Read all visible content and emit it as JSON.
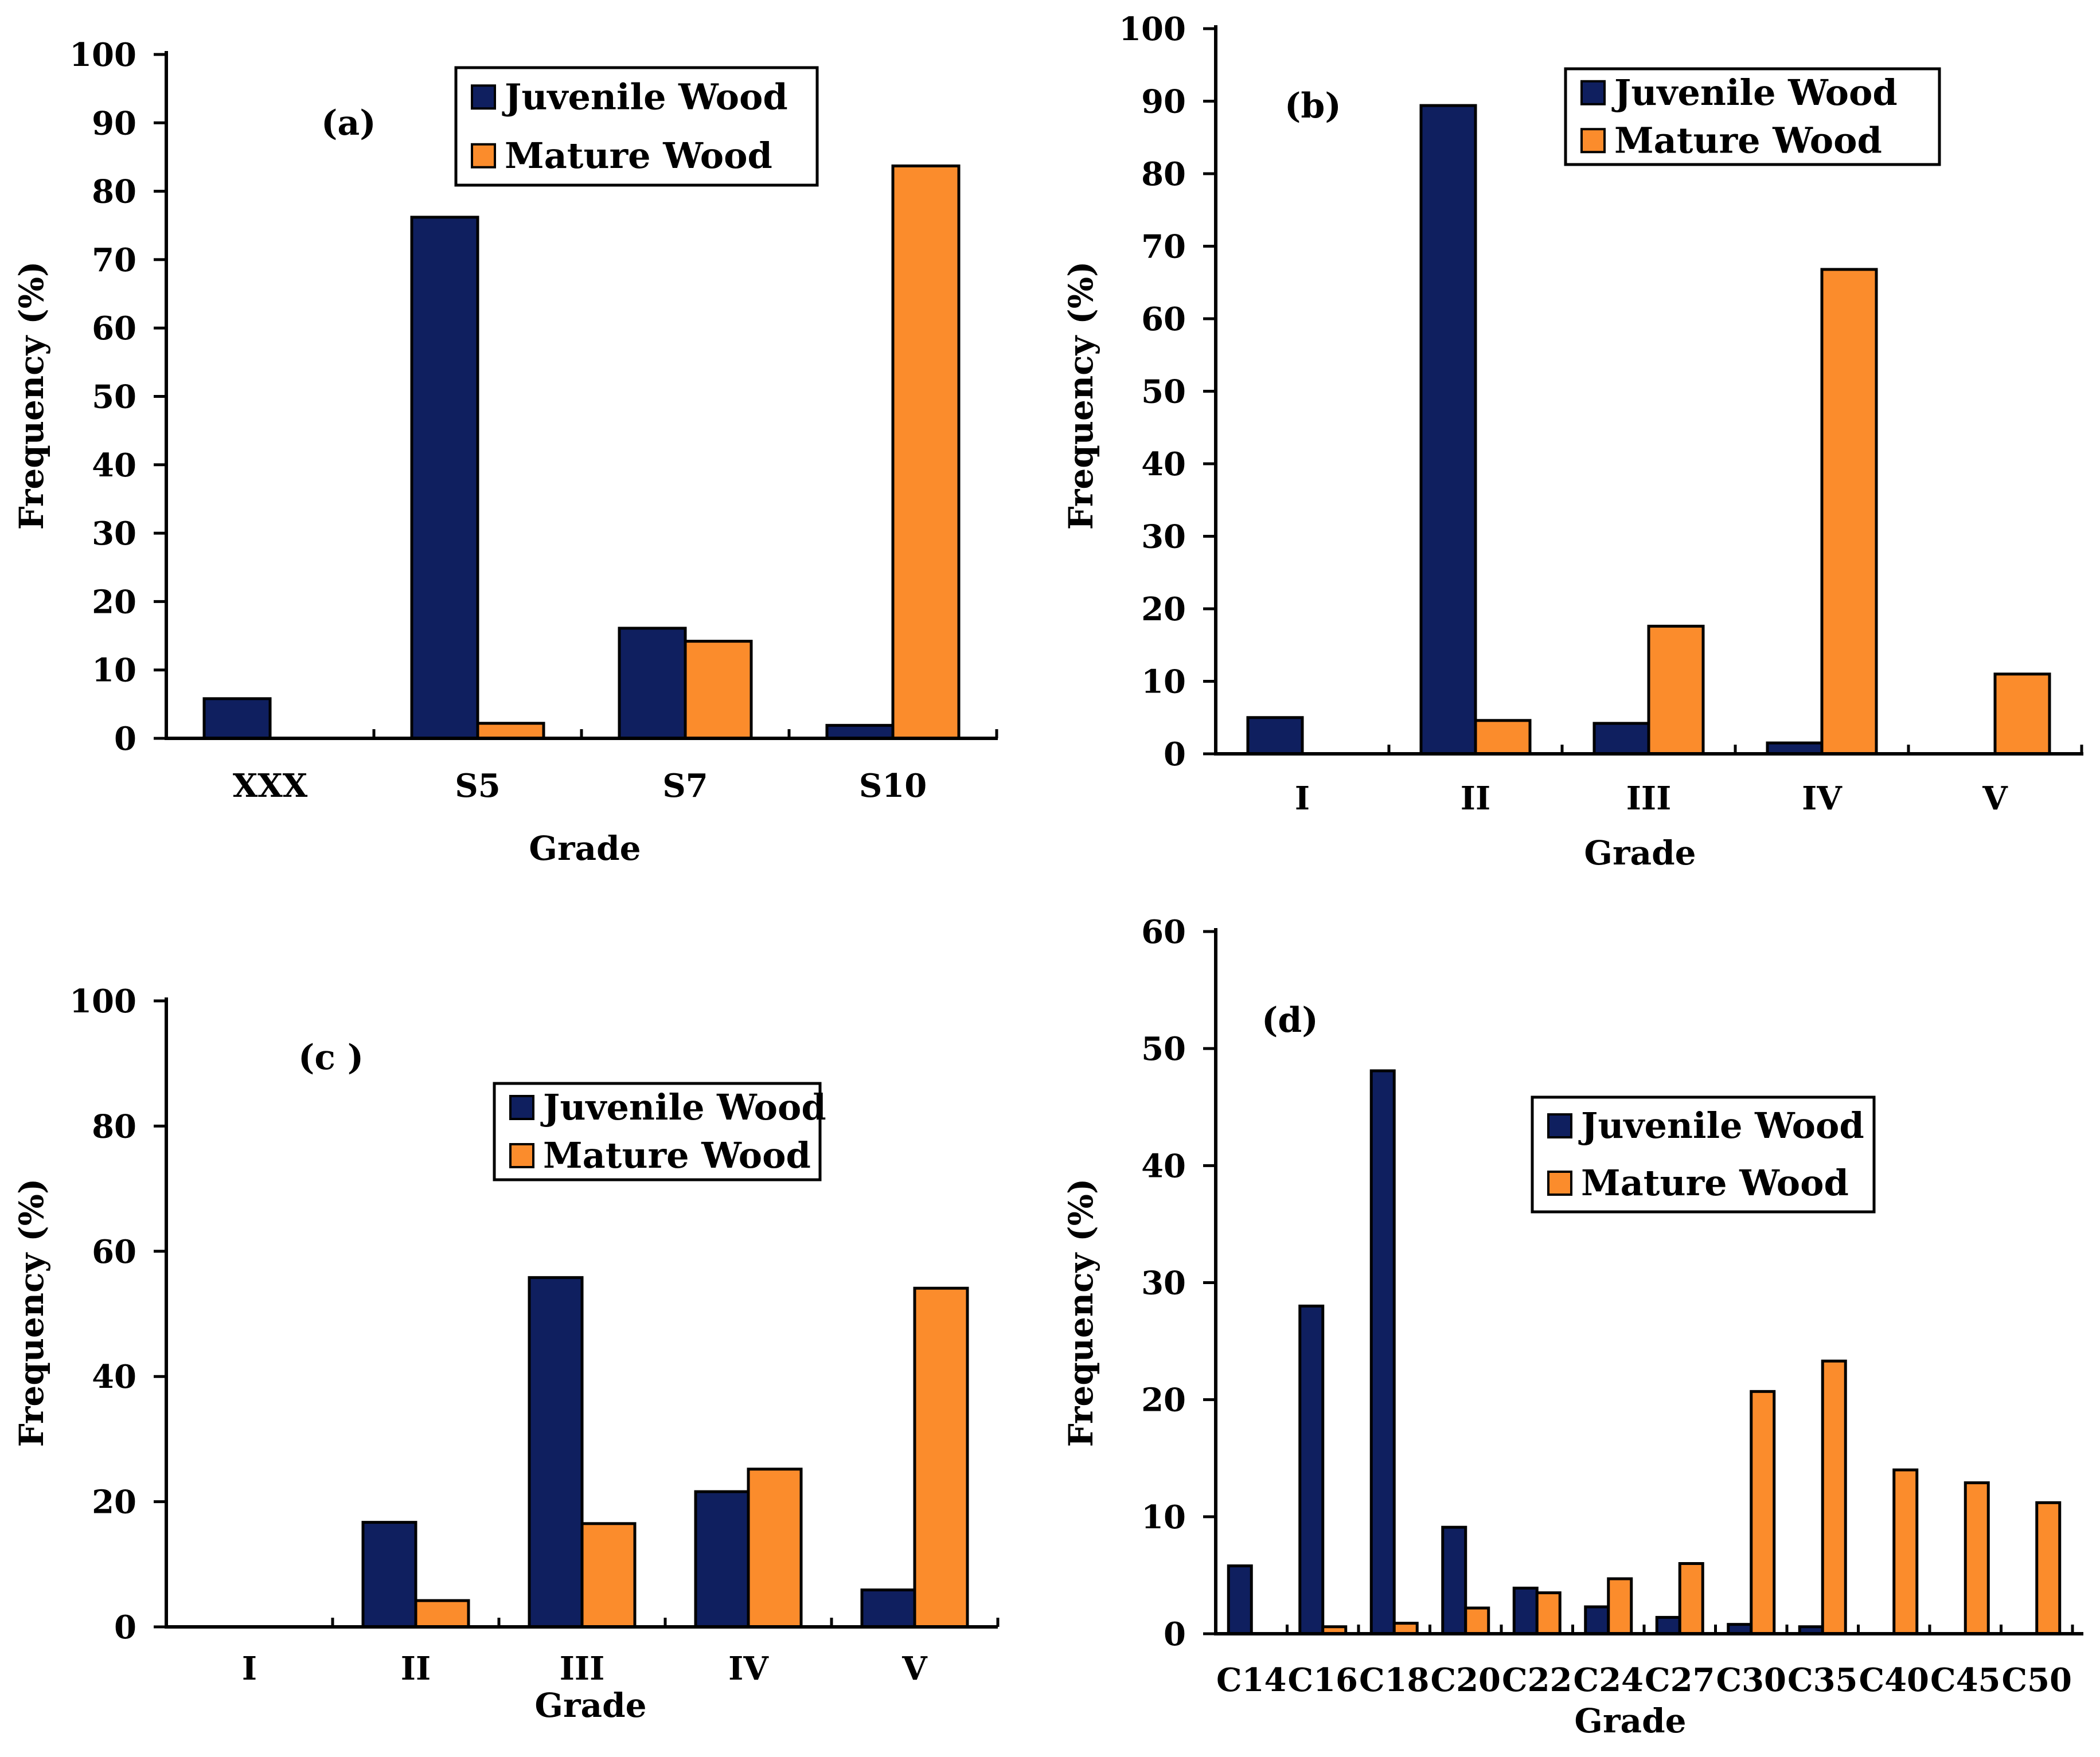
{
  "colors": {
    "juvenile": "#0f1f5f",
    "mature": "#fb8c2c"
  },
  "chart_data": [
    {
      "id": "a",
      "type": "bar",
      "panel_label": "(a)",
      "xlabel": "Grade",
      "ylabel": "Frequency (%)",
      "ylim": [
        0,
        100
      ],
      "ytick_step": 10,
      "categories": [
        "XXX",
        "S5",
        "S7",
        "S10"
      ],
      "series": [
        {
          "name": "Juvenile Wood",
          "color_key": "juvenile",
          "values": [
            5.8,
            76.2,
            16.1,
            1.9
          ]
        },
        {
          "name": "Mature Wood",
          "color_key": "mature",
          "values": [
            0,
            2.2,
            14.2,
            83.7
          ]
        }
      ],
      "legend": "top-right"
    },
    {
      "id": "b",
      "type": "bar",
      "panel_label": "(b)",
      "xlabel": "Grade",
      "ylabel": "Frequency (%)",
      "ylim": [
        0,
        100
      ],
      "ytick_step": 10,
      "categories": [
        "I",
        "II",
        "III",
        "IV",
        "V"
      ],
      "series": [
        {
          "name": "Juvenile Wood",
          "color_key": "juvenile",
          "values": [
            5.0,
            89.4,
            4.2,
            1.5,
            0
          ]
        },
        {
          "name": "Mature Wood",
          "color_key": "mature",
          "values": [
            0,
            4.6,
            17.6,
            66.8,
            11.0
          ]
        }
      ],
      "legend": "top-right"
    },
    {
      "id": "c",
      "type": "bar",
      "panel_label": "(c )",
      "xlabel": "Grade",
      "ylabel": "Frequency (%)",
      "ylim": [
        0,
        100
      ],
      "ytick_step": 20,
      "categories": [
        "I",
        "II",
        "III",
        "IV",
        "V"
      ],
      "series": [
        {
          "name": "Juvenile Wood",
          "color_key": "juvenile",
          "values": [
            0,
            16.7,
            55.8,
            21.6,
            5.9
          ]
        },
        {
          "name": "Mature Wood",
          "color_key": "mature",
          "values": [
            0,
            4.2,
            16.5,
            25.2,
            54.1
          ]
        }
      ],
      "legend": "top-right"
    },
    {
      "id": "d",
      "type": "bar",
      "panel_label": "(d)",
      "xlabel": "Grade",
      "ylabel": "Frequency (%)",
      "ylim": [
        0,
        60
      ],
      "ytick_step": 10,
      "categories": [
        "C14",
        "C16",
        "C18",
        "C20",
        "C22",
        "C24",
        "C27",
        "C30",
        "C35",
        "C40",
        "C45",
        "C50"
      ],
      "series": [
        {
          "name": "Juvenile Wood",
          "color_key": "juvenile",
          "values": [
            5.8,
            28.0,
            48.1,
            9.1,
            3.9,
            2.3,
            1.4,
            0.8,
            0.6,
            0,
            0,
            0
          ]
        },
        {
          "name": "Mature Wood",
          "color_key": "mature",
          "values": [
            0,
            0.6,
            0.9,
            2.2,
            3.5,
            4.7,
            6.0,
            20.7,
            23.3,
            14.0,
            12.9,
            11.2
          ]
        }
      ],
      "legend": "top-right"
    }
  ]
}
